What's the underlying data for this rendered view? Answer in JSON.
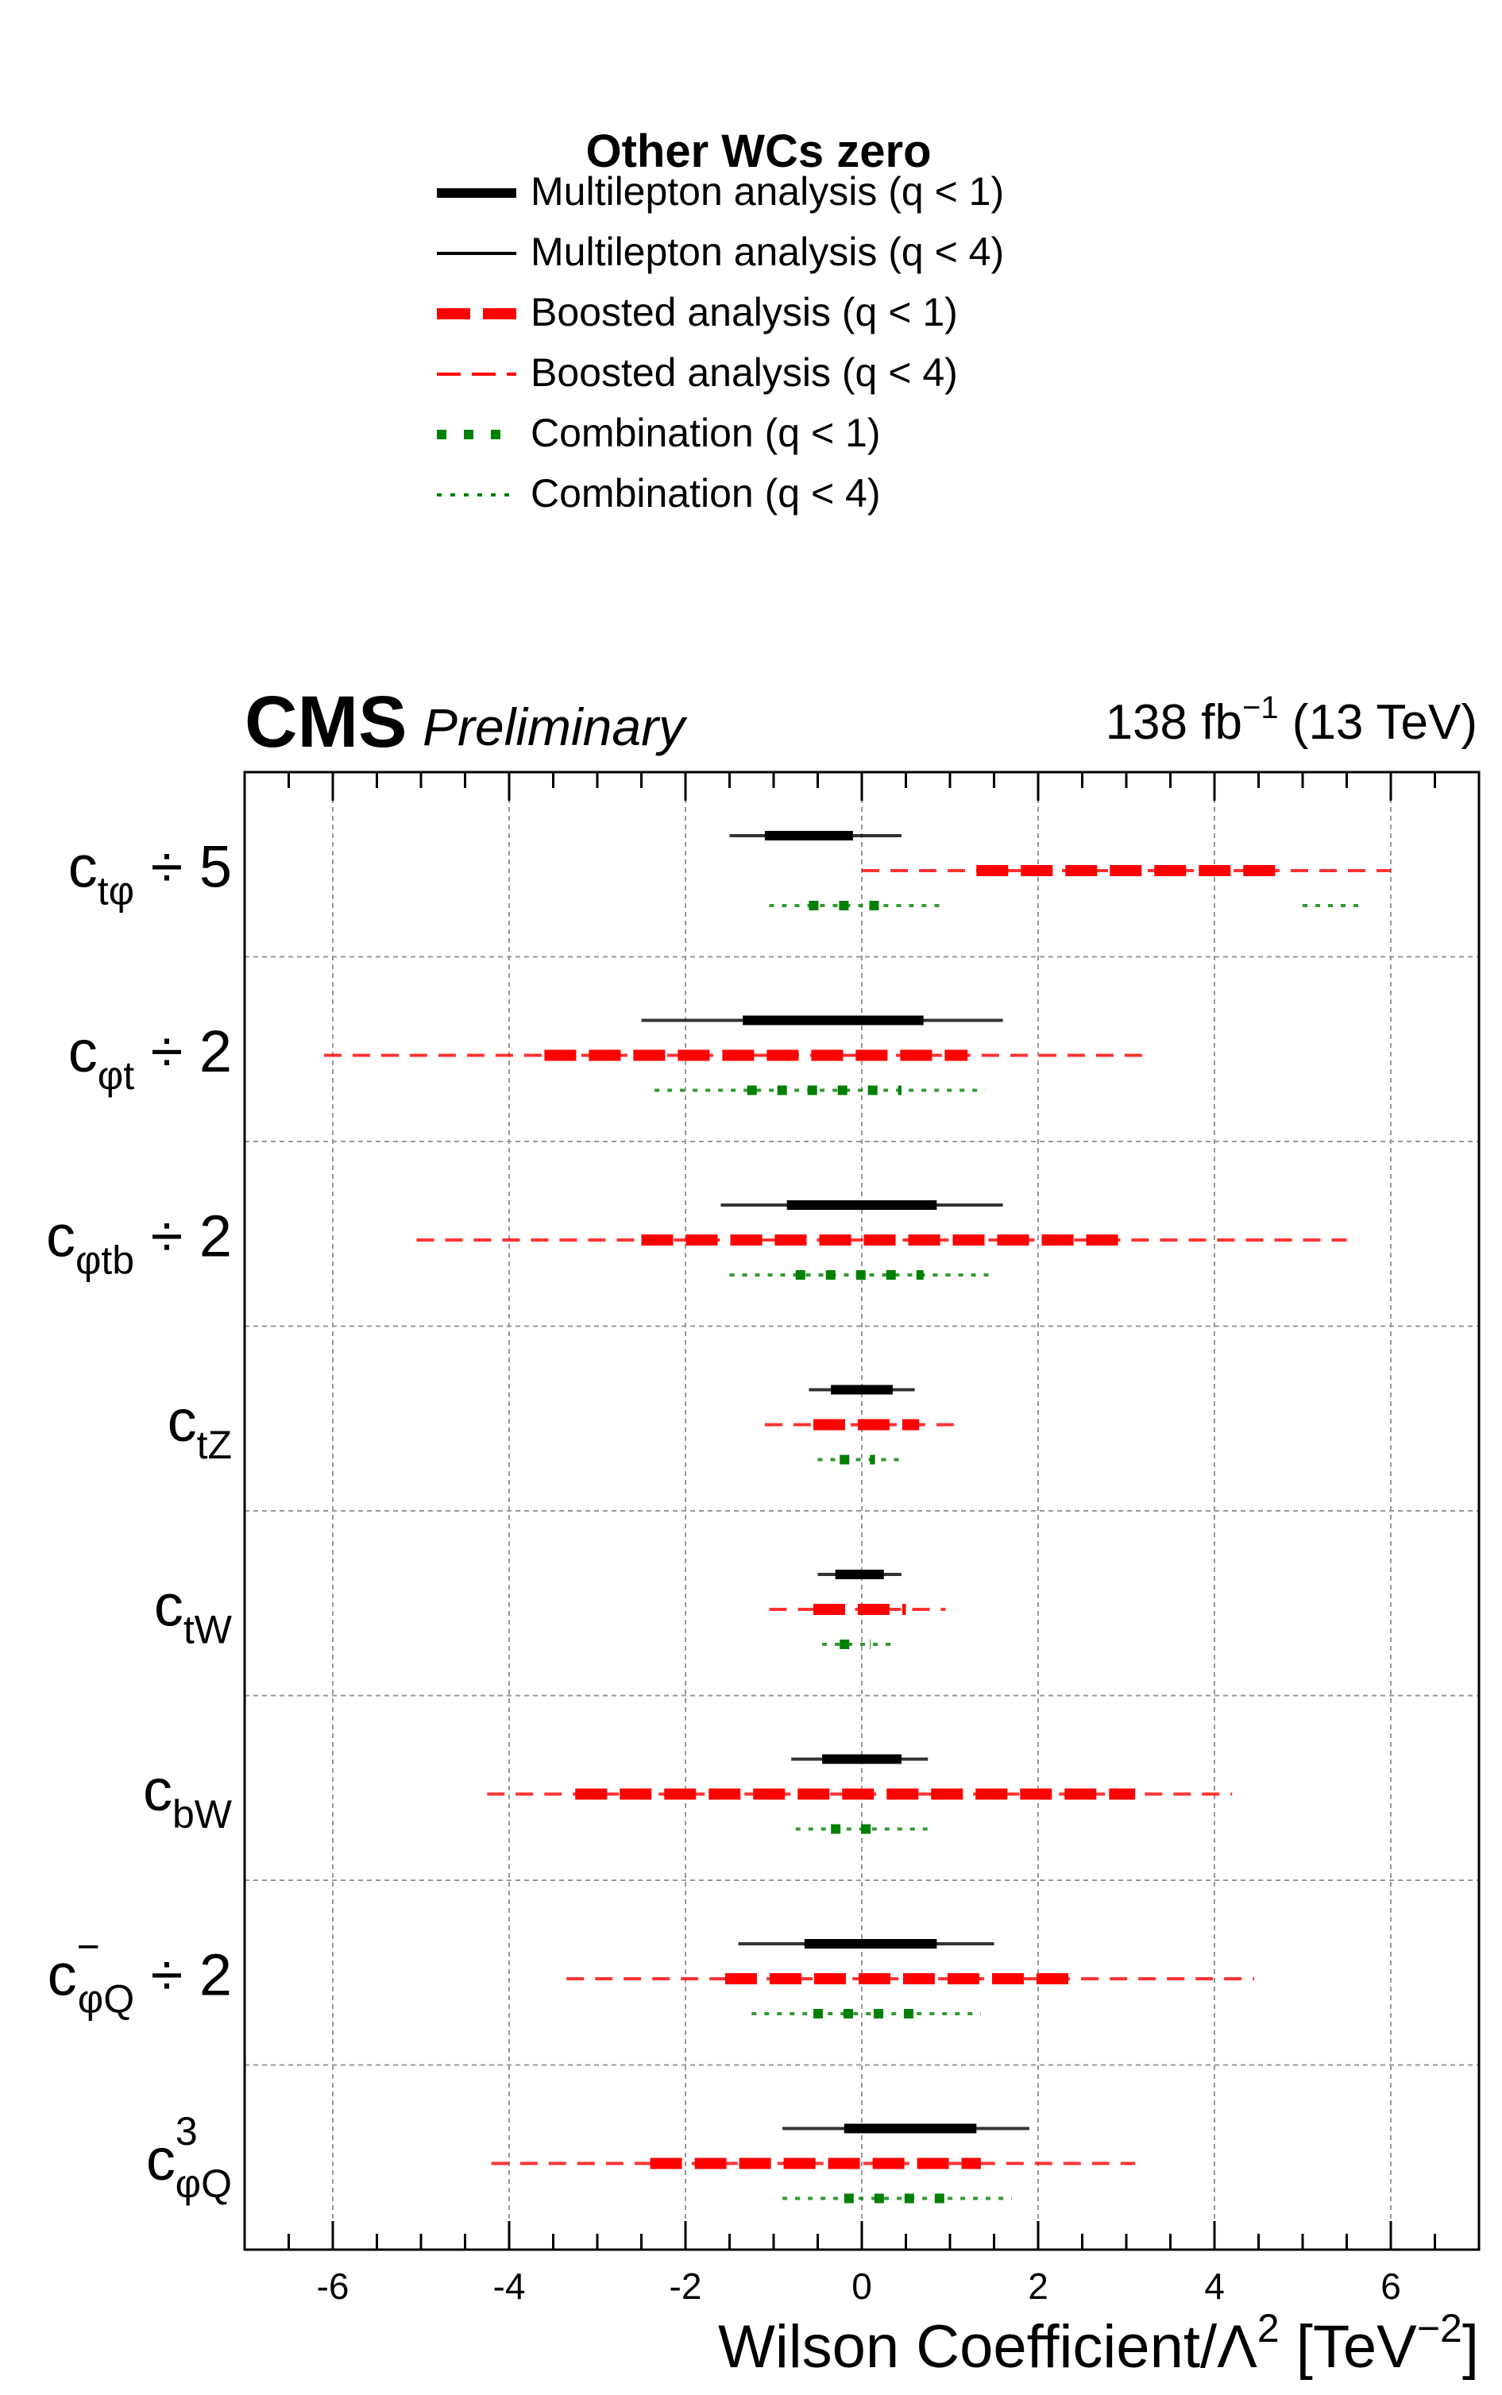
{
  "chart_data": {
    "type": "interval",
    "cms_label": "CMS",
    "preliminary_label": "Preliminary",
    "lumi_label": "138 fb",
    "lumi_exp": "−1",
    "energy_label": " (13 TeV)",
    "xlabel": {
      "main": "Wilson Coefficient/Λ",
      "sup": "2",
      "unit_open": " [TeV",
      "unit_sup": "−2",
      "unit_close": "]"
    },
    "xlim": [
      -7,
      7
    ],
    "xticks": [
      -6,
      -4,
      -2,
      0,
      2,
      4,
      6
    ],
    "xtick_labels": [
      "-6",
      "-4",
      "-2",
      "0",
      "2",
      "4",
      "6"
    ],
    "grid": true,
    "legend": {
      "placement": "top-center",
      "title": "Other WCs zero",
      "entries": [
        {
          "key": "ml_q1",
          "label": "Multilepton analysis (q < 1)",
          "color": "#000000",
          "style": "thick-solid"
        },
        {
          "key": "ml_q4",
          "label": "Multilepton analysis (q < 4)",
          "color": "#000000",
          "style": "thin-solid"
        },
        {
          "key": "bo_q1",
          "label": "Boosted analysis (q < 1)",
          "color": "#ff0000",
          "style": "thick-dashed"
        },
        {
          "key": "bo_q4",
          "label": "Boosted analysis (q < 4)",
          "color": "#ff0000",
          "style": "thin-dashed"
        },
        {
          "key": "co_q1",
          "label": "Combination (q < 1)",
          "color": "#008000",
          "style": "thick-dotted"
        },
        {
          "key": "co_q4",
          "label": "Combination (q < 4)",
          "color": "#008000",
          "style": "thin-dotted"
        }
      ]
    },
    "coefficients": [
      {
        "label_main": "c",
        "label_sub": "tφ",
        "label_sup": "",
        "label_suffix": " ÷ 5",
        "multilepton": {
          "q1": [
            [
              -1.1,
              -0.1
            ]
          ],
          "q4": [
            [
              -1.5,
              0.45
            ]
          ]
        },
        "boosted": {
          "q1": [
            [
              1.3,
              4.8
            ]
          ],
          "q4": [
            [
              0.0,
              6.0
            ]
          ]
        },
        "combination": {
          "q1": [
            [
              -0.6,
              0.3
            ]
          ],
          "q4": [
            [
              -1.05,
              0.9
            ],
            [
              5.0,
              5.7
            ]
          ]
        }
      },
      {
        "label_main": "c",
        "label_sub": "φt",
        "label_sup": "",
        "label_suffix": " ÷ 2",
        "multilepton": {
          "q1": [
            [
              -1.35,
              0.7
            ]
          ],
          "q4": [
            [
              -2.5,
              1.6
            ]
          ]
        },
        "boosted": {
          "q1": [
            [
              -3.6,
              1.2
            ]
          ],
          "q4": [
            [
              -6.1,
              3.2
            ]
          ]
        },
        "combination": {
          "q1": [
            [
              -1.3,
              0.45
            ]
          ],
          "q4": [
            [
              -2.35,
              1.4
            ]
          ]
        }
      },
      {
        "label_main": "c",
        "label_sub": "φtb",
        "label_sup": "",
        "label_suffix": " ÷ 2",
        "multilepton": {
          "q1": [
            [
              -0.85,
              0.85
            ]
          ],
          "q4": [
            [
              -1.6,
              1.6
            ]
          ]
        },
        "boosted": {
          "q1": [
            [
              -2.5,
              3.05
            ]
          ],
          "q4": [
            [
              -5.05,
              5.5
            ]
          ]
        },
        "combination": {
          "q1": [
            [
              -0.75,
              0.7
            ]
          ],
          "q4": [
            [
              -1.5,
              1.5
            ]
          ]
        }
      },
      {
        "label_main": "c",
        "label_sub": "tZ",
        "label_sup": "",
        "label_suffix": "",
        "multilepton": {
          "q1": [
            [
              -0.35,
              0.35
            ]
          ],
          "q4": [
            [
              -0.6,
              0.6
            ]
          ]
        },
        "boosted": {
          "q1": [
            [
              -0.55,
              0.65
            ]
          ],
          "q4": [
            [
              -1.1,
              1.1
            ]
          ]
        },
        "combination": {
          "q1": [
            [
              -0.25,
              0.15
            ]
          ],
          "q4": [
            [
              -0.5,
              0.45
            ]
          ]
        }
      },
      {
        "label_main": "c",
        "label_sub": "tW",
        "label_sup": "",
        "label_suffix": "",
        "multilepton": {
          "q1": [
            [
              -0.3,
              0.25
            ]
          ],
          "q4": [
            [
              -0.5,
              0.45
            ]
          ]
        },
        "boosted": {
          "q1": [
            [
              -0.55,
              0.5
            ]
          ],
          "q4": [
            [
              -1.05,
              0.95
            ]
          ]
        },
        "combination": {
          "q1": [
            [
              -0.25,
              0.1
            ]
          ],
          "q4": [
            [
              -0.45,
              0.4
            ]
          ]
        }
      },
      {
        "label_main": "c",
        "label_sub": "bW",
        "label_sup": "",
        "label_suffix": "",
        "multilepton": {
          "q1": [
            [
              -0.45,
              0.45
            ]
          ],
          "q4": [
            [
              -0.8,
              0.75
            ]
          ]
        },
        "boosted": {
          "q1": [
            [
              -3.25,
              3.1
            ]
          ],
          "q4": [
            [
              -4.25,
              4.2
            ]
          ]
        },
        "combination": {
          "q1": [
            [
              -0.35,
              0.25
            ]
          ],
          "q4": [
            [
              -0.75,
              0.75
            ]
          ]
        }
      },
      {
        "label_main": "c",
        "label_sub": "φQ",
        "label_sup": "−",
        "label_suffix": " ÷ 2",
        "multilepton": {
          "q1": [
            [
              -0.65,
              0.85
            ]
          ],
          "q4": [
            [
              -1.4,
              1.5
            ]
          ]
        },
        "boosted": {
          "q1": [
            [
              -1.55,
              2.45
            ]
          ],
          "q4": [
            [
              -3.35,
              4.45
            ]
          ]
        },
        "combination": {
          "q1": [
            [
              -0.55,
              0.6
            ]
          ],
          "q4": [
            [
              -1.25,
              1.35
            ]
          ]
        }
      },
      {
        "label_main": "c",
        "label_sub": "φQ",
        "label_sup": "3",
        "label_suffix": "",
        "multilepton": {
          "q1": [
            [
              -0.2,
              1.3
            ]
          ],
          "q4": [
            [
              -0.9,
              1.9
            ]
          ]
        },
        "boosted": {
          "q1": [
            [
              -2.4,
              1.35
            ]
          ],
          "q4": [
            [
              -4.2,
              3.1
            ]
          ]
        },
        "combination": {
          "q1": [
            [
              -0.2,
              0.95
            ]
          ],
          "q4": [
            [
              -0.9,
              1.7
            ]
          ]
        }
      }
    ]
  }
}
